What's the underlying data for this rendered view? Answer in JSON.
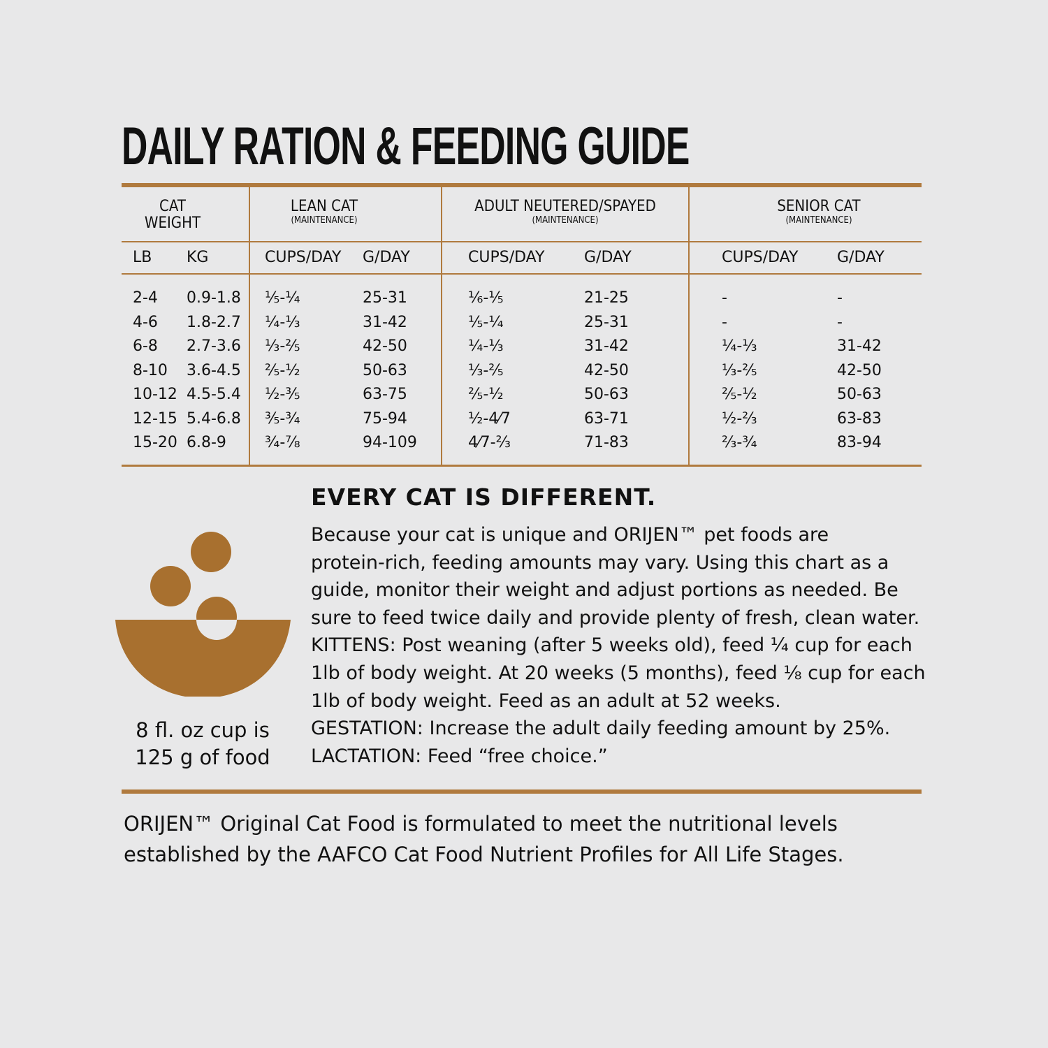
{
  "title": "DAILY RATION & FEEDING GUIDE",
  "table": {
    "groups": [
      {
        "label": "CAT WEIGHT",
        "line1": "CAT",
        "line2": "WEIGHT"
      },
      {
        "label": "LEAN CAT",
        "sub": "(MAINTENANCE)"
      },
      {
        "label": "ADULT NEUTERED/SPAYED",
        "sub": "(MAINTENANCE)"
      },
      {
        "label": "SENIOR CAT",
        "sub": "(MAINTENANCE)"
      }
    ],
    "subheaders": [
      "LB",
      "KG",
      "CUPS/DAY",
      "G/DAY",
      "CUPS/DAY",
      "G/DAY",
      "CUPS/DAY",
      "G/DAY"
    ],
    "rows": [
      [
        "2-4",
        "0.9-1.8",
        "⅕-¼",
        "25-31",
        "⅙-⅕",
        "21-25",
        "-",
        "-"
      ],
      [
        "4-6",
        "1.8-2.7",
        "¼-⅓",
        "31-42",
        "⅕-¼",
        "25-31",
        "-",
        "-"
      ],
      [
        "6-8",
        "2.7-3.6",
        "⅓-⅖",
        "42-50",
        "¼-⅓",
        "31-42",
        "¼-⅓",
        "31-42"
      ],
      [
        "8-10",
        "3.6-4.5",
        "⅖-½",
        "50-63",
        "⅓-⅖",
        "42-50",
        "⅓-⅖",
        "42-50"
      ],
      [
        "10-12",
        "4.5-5.4",
        "½-⅗",
        "63-75",
        "⅖-½",
        "50-63",
        "⅖-½",
        "50-63"
      ],
      [
        "12-15",
        "5.4-6.8",
        "⅗-¾",
        "75-94",
        "½-4⁄7",
        "63-71",
        "½-⅔",
        "63-83"
      ],
      [
        "15-20",
        "6.8-9",
        "¾-⅞",
        "94-109",
        "4⁄7-⅔",
        "71-83",
        "⅔-¾",
        "83-94"
      ]
    ]
  },
  "note": {
    "heading": "EVERY CAT IS DIFFERENT.",
    "lines": [
      "Because your cat is unique and ORIJEN™ pet foods are",
      "protein-rich, feeding amounts may vary. Using this chart as a",
      "guide, monitor their weight and adjust portions as needed. Be",
      "sure to feed twice daily and provide plenty of fresh, clean water.",
      "KITTENS: Post weaning (after 5 weeks old), feed ¼ cup for each",
      "1lb of body weight. At 20 weeks (5 months), feed ⅛ cup for each",
      "1lb of body weight. Feed as an adult at 52 weeks.",
      "GESTATION: Increase the adult daily feeding amount by 25%.",
      "LACTATION: Feed “free choice.”"
    ]
  },
  "cup_note": {
    "line1": "8 fl. oz cup is",
    "line2": "125 g of food"
  },
  "footer": {
    "line1": "ORIJEN™ Original Cat Food is formulated to meet the nutritional levels",
    "line2": "established by the AAFCO Cat Food Nutrient Profiles for All Life Stages."
  },
  "icon": "food-bowl-icon",
  "colors": {
    "accent": "#b07a3e",
    "bowl": "#a8702f",
    "background": "#e8e8e9"
  }
}
